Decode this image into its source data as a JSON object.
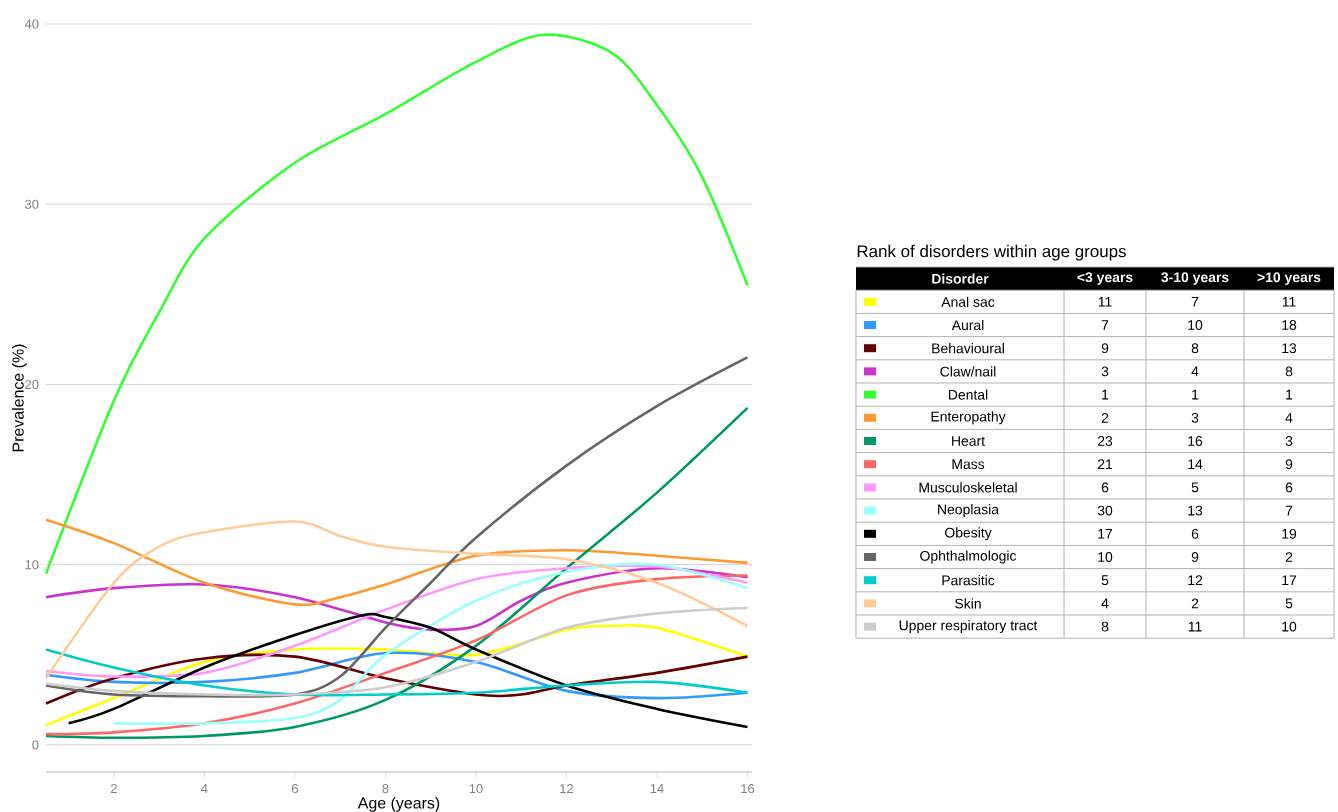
{
  "chart_data": [
    {
      "type": "line",
      "xlabel": "Age (years)",
      "ylabel": "Prevalence (%)",
      "legend_title": "Disorder",
      "grid": "y",
      "marker": "none",
      "line_style": "solid",
      "xlim": [
        0.5,
        16.1
      ],
      "ylim": [
        -1.5,
        40
      ],
      "xticks": [
        2,
        4,
        6,
        8,
        10,
        12,
        14,
        16
      ],
      "yticks": [
        0,
        10,
        20,
        30,
        40
      ],
      "series": [
        {
          "name": "Anal sac",
          "color": "#ffff00",
          "x": [
            0.5,
            2,
            4,
            6,
            8,
            10,
            12,
            13,
            14,
            16
          ],
          "values": [
            1.1,
            2.6,
            4.6,
            5.3,
            5.3,
            5.0,
            6.4,
            6.6,
            6.5,
            4.9
          ]
        },
        {
          "name": "Aural",
          "color": "#3399ff",
          "x": [
            0.5,
            2,
            4,
            6,
            8,
            10,
            12,
            14,
            16
          ],
          "values": [
            3.9,
            3.5,
            3.5,
            4.0,
            5.1,
            4.6,
            3.0,
            2.6,
            2.9
          ]
        },
        {
          "name": "Behavioural",
          "color": "#660000",
          "x": [
            0.5,
            2,
            4,
            6,
            8,
            10,
            11,
            12,
            14,
            16
          ],
          "values": [
            2.3,
            3.7,
            4.8,
            4.9,
            3.7,
            2.8,
            2.8,
            3.3,
            4.0,
            4.9
          ]
        },
        {
          "name": "Claw/nail",
          "color": "#cc33cc",
          "x": [
            0.5,
            2,
            4,
            6,
            8,
            9,
            10,
            11,
            12,
            14,
            16
          ],
          "values": [
            8.2,
            8.7,
            8.9,
            8.2,
            6.8,
            6.4,
            6.6,
            8.0,
            9.0,
            9.8,
            9.3
          ]
        },
        {
          "name": "Dental",
          "color": "#33ff33",
          "x": [
            0.5,
            2,
            3,
            4,
            6,
            8,
            10,
            11.5,
            13,
            14,
            15,
            16
          ],
          "values": [
            9.5,
            19.1,
            24,
            28.1,
            32.3,
            35,
            37.9,
            39.4,
            38.4,
            35.5,
            31.5,
            25.5
          ]
        },
        {
          "name": "Enteropathy",
          "color": "#ff9933",
          "x": [
            0.5,
            2,
            4,
            6,
            7,
            8,
            10,
            12,
            14,
            16
          ],
          "values": [
            12.5,
            11.2,
            9,
            7.8,
            8.2,
            8.9,
            10.5,
            10.8,
            10.5,
            10.1
          ]
        },
        {
          "name": "Heart",
          "color": "#009966",
          "x": [
            0.5,
            2,
            4,
            6,
            8,
            10,
            12,
            14,
            16
          ],
          "values": [
            0.5,
            0.4,
            0.5,
            1.0,
            2.5,
            5.5,
            9.8,
            14,
            18.7
          ]
        },
        {
          "name": "Mass",
          "color": "#ff6666",
          "x": [
            0.5,
            2,
            4,
            6,
            8,
            10,
            12,
            14,
            16
          ],
          "values": [
            0.6,
            0.7,
            1.2,
            2.3,
            4,
            5.8,
            8.3,
            9.2,
            9.4
          ]
        },
        {
          "name": "Musculoskeletal",
          "color": "#ff99ff",
          "x": [
            0.5,
            2,
            4,
            6,
            8,
            10,
            12,
            14,
            16
          ],
          "values": [
            4.1,
            3.8,
            4,
            5.5,
            7.5,
            9.2,
            9.8,
            9.9,
            9.0
          ]
        },
        {
          "name": "Neoplasia",
          "color": "#99ffff",
          "x": [
            2,
            4,
            6,
            7,
            8,
            10,
            12,
            14,
            16
          ],
          "values": [
            1.2,
            1.2,
            1.5,
            2.5,
            5,
            8,
            9.6,
            10,
            8.7
          ]
        },
        {
          "name": "Obesity",
          "color": "#000000",
          "x": [
            1,
            2,
            4,
            6,
            7.5,
            8,
            9,
            10,
            12,
            14,
            16
          ],
          "values": [
            1.2,
            2.0,
            4.3,
            6.1,
            7.2,
            7.1,
            6.5,
            5.3,
            3.3,
            2,
            1.0
          ]
        },
        {
          "name": "Ophthalmologic",
          "color": "#666666",
          "x": [
            0.5,
            2,
            4,
            6,
            7,
            8,
            9,
            10,
            12,
            14,
            16
          ],
          "values": [
            3.3,
            2.8,
            2.7,
            2.8,
            3.8,
            6.5,
            9,
            11.5,
            15.5,
            18.8,
            21.5
          ]
        },
        {
          "name": "Parasitic",
          "color": "#00cccc",
          "x": [
            0.5,
            2,
            4,
            6,
            8,
            10,
            12,
            14,
            16
          ],
          "values": [
            5.3,
            4.3,
            3.3,
            2.8,
            2.8,
            2.9,
            3.3,
            3.5,
            2.9
          ]
        },
        {
          "name": "Skin",
          "color": "#ffcc99",
          "x": [
            0.5,
            2,
            3,
            4,
            6,
            7,
            8,
            10,
            12,
            14,
            16
          ],
          "values": [
            3.7,
            9,
            11,
            11.8,
            12.4,
            11.6,
            11,
            10.6,
            10.3,
            9,
            6.6
          ]
        },
        {
          "name": "Upper respiratory tract",
          "color": "#cccccc",
          "x": [
            0.5,
            2,
            4,
            6,
            8,
            10,
            12,
            14,
            16
          ],
          "values": [
            3.4,
            3.0,
            2.8,
            2.8,
            3.2,
            4.6,
            6.5,
            7.3,
            7.6
          ]
        }
      ]
    },
    {
      "type": "other",
      "title": "Rank of disorders within age groups",
      "categories": [
        "<3 years",
        "3-10 years",
        ">10 years"
      ],
      "annotations": [
        "11",
        "7",
        "11",
        "7",
        "10",
        "18",
        "9",
        "8",
        "13",
        "3",
        "4",
        "8",
        "1",
        "1",
        "1",
        "2",
        "3",
        "4",
        "23",
        "16",
        "3",
        "21",
        "14",
        "9",
        "6",
        "5",
        "6",
        "30",
        "13",
        "7",
        "17",
        "6",
        "19",
        "10",
        "9",
        "2",
        "5",
        "12",
        "17",
        "4",
        "2",
        "5",
        "8",
        "11",
        "10"
      ]
    }
  ]
}
